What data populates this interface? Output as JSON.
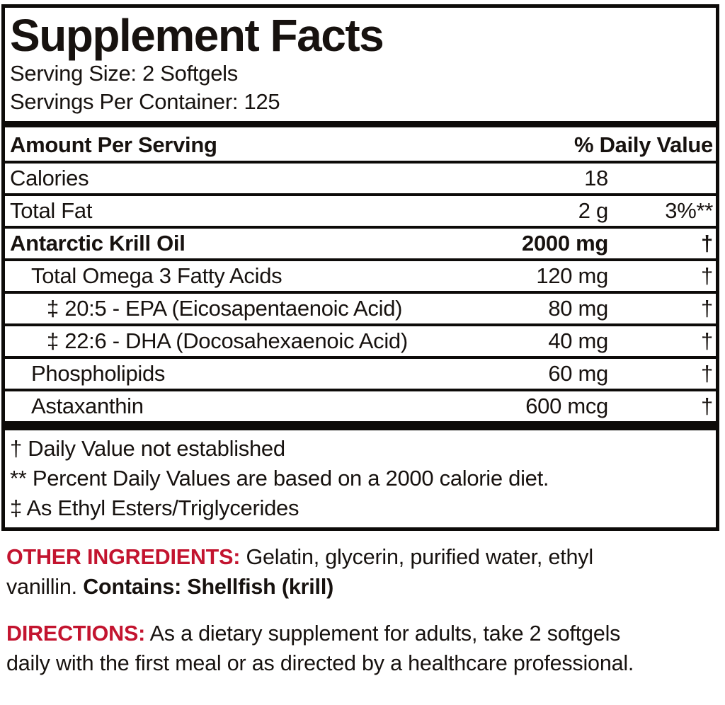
{
  "panel": {
    "title": "Supplement Facts",
    "serving_size": "Serving Size: 2 Softgels",
    "servings_per_container": "Servings Per Container: 125",
    "header": {
      "amount_per_serving": "Amount Per Serving",
      "daily_value": "% Daily Value"
    },
    "rows": [
      {
        "name": "Calories",
        "amount": "18",
        "dv": ""
      },
      {
        "name": "Total Fat",
        "amount": "2 g",
        "dv": "3%**"
      },
      {
        "name": "Antarctic Krill Oil",
        "amount": "2000 mg",
        "dv": "†"
      },
      {
        "name": "Total Omega 3 Fatty Acids",
        "amount": "120 mg",
        "dv": "†"
      },
      {
        "name": "‡ 20:5 - EPA (Eicosapentaenoic Acid)",
        "amount": "80 mg",
        "dv": "†"
      },
      {
        "name": "‡ 22:6 - DHA (Docosahexaenoic Acid)",
        "amount": "40 mg",
        "dv": "†"
      },
      {
        "name": "Phospholipids",
        "amount": "60 mg",
        "dv": "†"
      },
      {
        "name": "Astaxanthin",
        "amount": "600 mcg",
        "dv": "†"
      }
    ],
    "footnotes": [
      "† Daily Value not established",
      "** Percent Daily Values are based on a 2000 calorie diet.",
      "‡ As Ethyl Esters/Triglycerides"
    ]
  },
  "other_ingredients": {
    "label": "OTHER INGREDIENTS:",
    "text": " Gelatin, glycerin, purified water, ethyl vanillin. ",
    "contains": "Contains: Shellfish (krill)"
  },
  "directions": {
    "label": "DIRECTIONS:",
    "text": " As a dietary supplement for adults, take 2 softgels daily with the first meal or as directed by a healthcare professional."
  },
  "colors": {
    "accent_red": "#C3142F",
    "text_black": "#17120f",
    "border_black": "#0d0b09"
  }
}
